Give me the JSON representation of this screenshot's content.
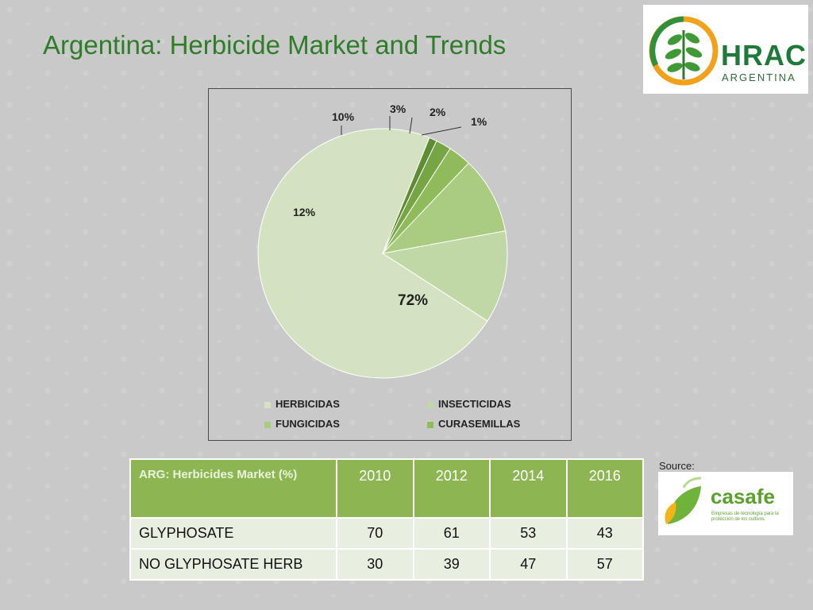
{
  "page": {
    "title": "Argentina: Herbicide Market and Trends",
    "logo_text": "HRAC",
    "logo_subtext": "ARGENTINA",
    "source_label": "Source:",
    "source_logo_text": "casafe",
    "source_logo_tagline": "Empresas de tecnología para la protección de los cultivos"
  },
  "chart_data": {
    "type": "pie",
    "categories": [
      "HERBICIDAS",
      "INSECTICIDAS",
      "FUNGICIDAS",
      "CURASEMILLAS"
    ],
    "slices": [
      {
        "name": "HERBICIDAS",
        "value": 72,
        "label": "72%",
        "color": "#d5e2c1"
      },
      {
        "name": "INSECTICIDAS",
        "value": 12,
        "label": "12%",
        "color": "#c0d8a5"
      },
      {
        "name": "FUNGICIDAS",
        "value": 10,
        "label": "10%",
        "color": "#a9cc80"
      },
      {
        "name": "CURASEMILLAS",
        "value": 3,
        "label": "3%",
        "color": "#8fbb5a"
      },
      {
        "name": "",
        "value": 2,
        "label": "2%",
        "color": "#76a545"
      },
      {
        "name": "",
        "value": 1,
        "label": "1%",
        "color": "#5d8c33"
      }
    ],
    "legend": {
      "placement": "bottom",
      "entries": [
        {
          "name": "HERBICIDAS",
          "color": "#d5e2c1"
        },
        {
          "name": "INSECTICIDAS",
          "color": "#c0d8a5"
        },
        {
          "name": "FUNGICIDAS",
          "color": "#a9cc80"
        },
        {
          "name": "CURASEMILLAS",
          "color": "#8fbb5a"
        }
      ]
    }
  },
  "table": {
    "header": [
      "ARG: Herbicides Market (%)",
      "2010",
      "2012",
      "2014",
      "2016"
    ],
    "rows": [
      [
        "GLYPHOSATE",
        "70",
        "61",
        "53",
        "43"
      ],
      [
        "NO GLYPHOSATE HERB",
        "30",
        "39",
        "47",
        "57"
      ]
    ]
  },
  "colors": {
    "title": "#2f7d2a",
    "table_header": "#8db652",
    "table_row": "#e8efe0"
  }
}
